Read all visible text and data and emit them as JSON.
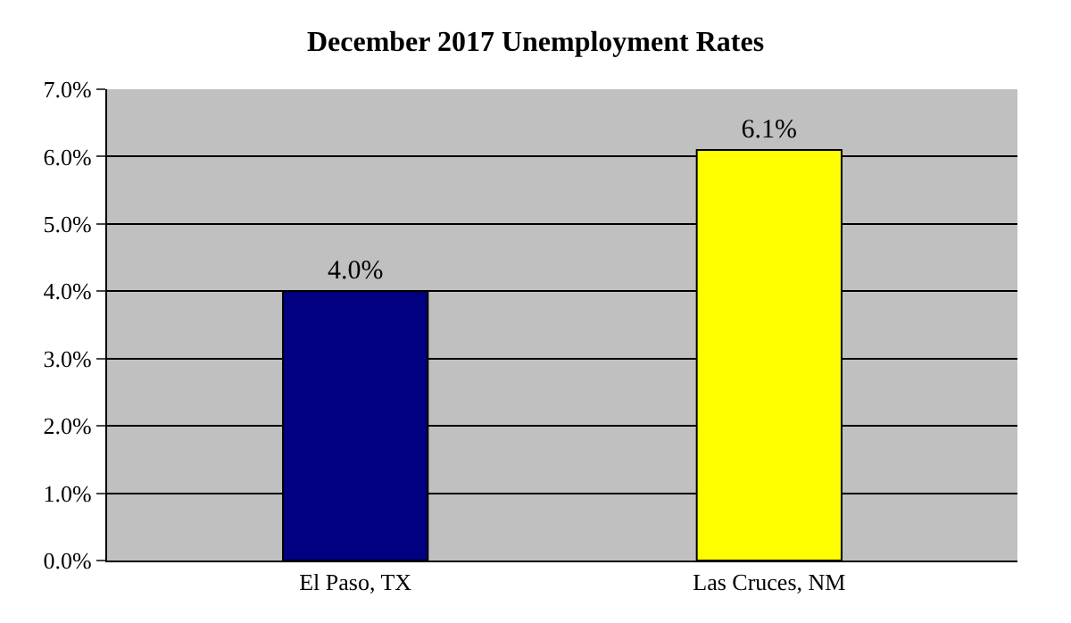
{
  "chart_data": {
    "type": "bar",
    "title": "December 2017 Unemployment Rates",
    "categories": [
      "El Paso, TX",
      "Las Cruces, NM"
    ],
    "values": [
      4.0,
      6.1
    ],
    "colors": [
      "#000080",
      "#ffff00"
    ],
    "value_labels": [
      "4.0%",
      "6.1%"
    ],
    "ylim": [
      0,
      7
    ],
    "yticks": [
      {
        "value": 0,
        "label": "0.0%"
      },
      {
        "value": 1,
        "label": "1.0%"
      },
      {
        "value": 2,
        "label": "2.0%"
      },
      {
        "value": 3,
        "label": "3.0%"
      },
      {
        "value": 4,
        "label": "4.0%"
      },
      {
        "value": 5,
        "label": "5.0%"
      },
      {
        "value": 6,
        "label": "6.0%"
      },
      {
        "value": 7,
        "label": "7.0%"
      }
    ],
    "grid": "y",
    "legend": false
  }
}
